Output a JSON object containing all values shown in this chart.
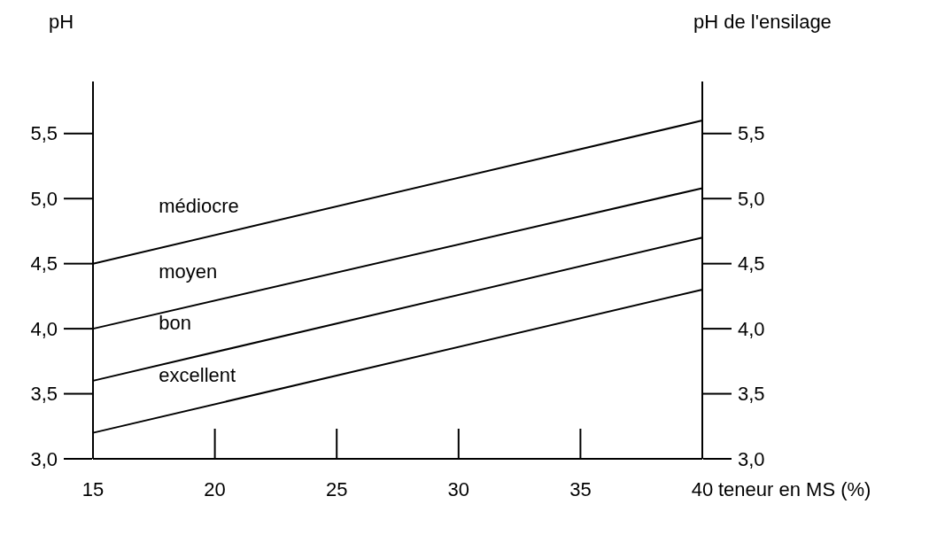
{
  "chart_data": {
    "type": "line",
    "xlabel": "teneur en MS (%)",
    "ylabel": "pH",
    "y2label": "pH de l'ensilage",
    "x": [
      15,
      40
    ],
    "series": [
      {
        "color": "#000000",
        "values": [
          4.5,
          5.6
        ]
      },
      {
        "color": "#000000",
        "values": [
          4.0,
          5.08
        ]
      },
      {
        "color": "#000000",
        "values": [
          3.6,
          4.7
        ]
      },
      {
        "color": "#000000",
        "values": [
          3.2,
          4.3
        ]
      }
    ],
    "xlim": [
      15,
      40
    ],
    "xticks": [
      15,
      20,
      25,
      30,
      35,
      40
    ],
    "ylim": [
      3.0,
      5.9
    ],
    "yticks": [
      {
        "value": 3.0,
        "label": "3,0"
      },
      {
        "value": 3.5,
        "label": "3,5"
      },
      {
        "value": 4.0,
        "label": "4,0"
      },
      {
        "value": 4.5,
        "label": "4,5"
      },
      {
        "value": 5.0,
        "label": "5,0"
      },
      {
        "value": 5.5,
        "label": "5,5"
      }
    ],
    "y2lim": [
      3.0,
      5.9
    ],
    "y2ticks": [
      {
        "value": 3.0,
        "label": "3,0"
      },
      {
        "value": 3.5,
        "label": "3,5"
      },
      {
        "value": 4.0,
        "label": "4,0"
      },
      {
        "value": 4.5,
        "label": "4,5"
      },
      {
        "value": 5.0,
        "label": "5,0"
      },
      {
        "value": 5.5,
        "label": "5,5"
      }
    ],
    "annotations": [
      "médiocre",
      "moyen",
      "bon",
      "excellent"
    ],
    "grid": false,
    "marker": "none",
    "line_style": "solid"
  }
}
